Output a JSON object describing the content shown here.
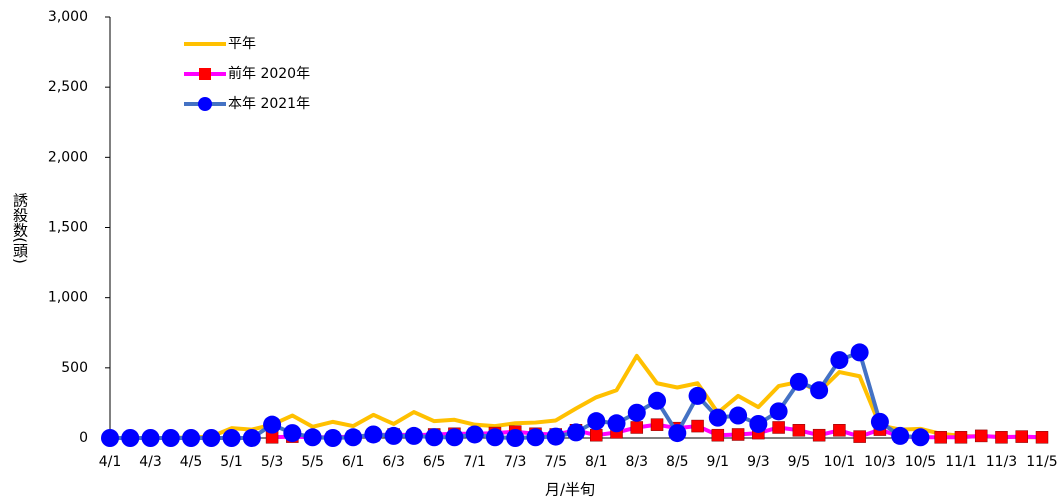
{
  "chart_data": {
    "type": "line",
    "x_label": "月/半旬",
    "y_label": "誘殺数(頭)",
    "categories": [
      "4/1",
      null,
      "4/3",
      null,
      "4/5",
      null,
      "5/1",
      null,
      "5/3",
      null,
      "5/5",
      null,
      "6/1",
      null,
      "6/3",
      null,
      "6/5",
      null,
      "7/1",
      null,
      "7/3",
      null,
      "7/5",
      null,
      "8/1",
      null,
      "8/3",
      null,
      "8/5",
      null,
      "9/1",
      null,
      "9/3",
      null,
      "9/5",
      null,
      "10/1",
      null,
      "10/3",
      null,
      "10/5",
      null,
      "11/1",
      null,
      "11/3",
      null,
      "11/5"
    ],
    "ylim": [
      0,
      3000
    ],
    "yticks": [
      {
        "value": 0,
        "label": "0"
      },
      {
        "value": 500,
        "label": "500"
      },
      {
        "value": 1000,
        "label": "1,000"
      },
      {
        "value": 1500,
        "label": "1,500"
      },
      {
        "value": 2000,
        "label": "2,000"
      },
      {
        "value": 2500,
        "label": "2,500"
      },
      {
        "value": 3000,
        "label": "3,000"
      }
    ],
    "legend": "upper left",
    "series": [
      {
        "name": "平年",
        "color": "#ffc000",
        "marker": "none",
        "values": [
          0,
          0,
          0,
          0,
          5,
          10,
          70,
          60,
          95,
          160,
          80,
          115,
          85,
          165,
          100,
          185,
          120,
          130,
          95,
          85,
          105,
          110,
          125,
          210,
          290,
          340,
          585,
          390,
          360,
          390,
          180,
          300,
          220,
          370,
          400,
          330,
          470,
          440,
          90,
          60,
          65,
          30,
          15,
          10,
          10,
          5,
          5
        ]
      },
      {
        "name": "前年 2020年",
        "color": "#ff00ff",
        "marker": "square",
        "marker_color": "#ff0000",
        "values": [
          null,
          null,
          null,
          null,
          null,
          null,
          null,
          null,
          5,
          10,
          5,
          5,
          10,
          20,
          25,
          20,
          25,
          30,
          30,
          35,
          45,
          30,
          25,
          55,
          20,
          40,
          75,
          95,
          70,
          85,
          20,
          25,
          35,
          75,
          55,
          20,
          55,
          10,
          60,
          10,
          5,
          5,
          5,
          15,
          5,
          10,
          5
        ]
      },
      {
        "name": "本年 2021年",
        "color": "#4472c4",
        "marker": "circle",
        "marker_color": "#0000ff",
        "values": [
          0,
          0,
          0,
          0,
          0,
          0,
          0,
          0,
          95,
          35,
          5,
          0,
          5,
          25,
          15,
          15,
          5,
          5,
          25,
          5,
          0,
          5,
          10,
          40,
          120,
          105,
          180,
          265,
          35,
          300,
          145,
          160,
          100,
          190,
          400,
          340,
          555,
          610,
          115,
          15,
          5,
          null,
          null,
          null,
          null,
          null,
          null
        ]
      }
    ]
  }
}
